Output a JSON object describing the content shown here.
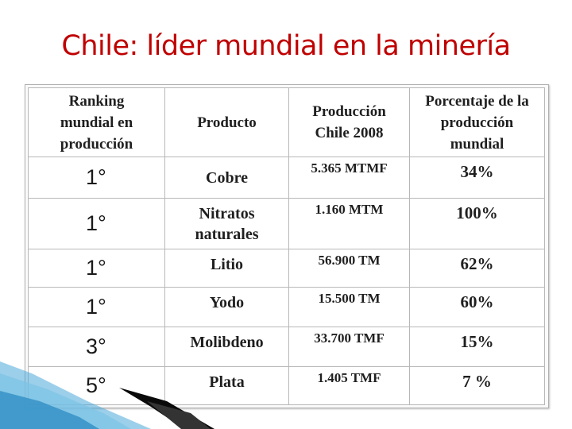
{
  "title": "Chile: líder mundial en la minería",
  "table": {
    "headers": [
      "Ranking mundial en producción",
      "Producto",
      "Producción Chile 2008",
      "Porcentaje de la producción mundial"
    ],
    "rows": [
      {
        "rank": "1°",
        "product": "Cobre",
        "production": "5.365 MTMF",
        "percent": "34%"
      },
      {
        "rank": "1°",
        "product": "Nitratos naturales",
        "production": "1.160 MTM",
        "percent": "100%"
      },
      {
        "rank": "1°",
        "product": "Litio",
        "production": "56.900 TM",
        "percent": "62%"
      },
      {
        "rank": "1°",
        "product": "Yodo",
        "production": "15.500 TM",
        "percent": "60%"
      },
      {
        "rank": "3°",
        "product": "Molibdeno",
        "production": "33.700 TMF",
        "percent": "15%"
      },
      {
        "rank": "5°",
        "product": "Plata",
        "production": "1.405 TMF",
        "percent": "7 %"
      }
    ]
  },
  "colors": {
    "title": "#c00000",
    "accent_dark": "#0a0a0a",
    "accent_blue": "#4aa8d8"
  }
}
